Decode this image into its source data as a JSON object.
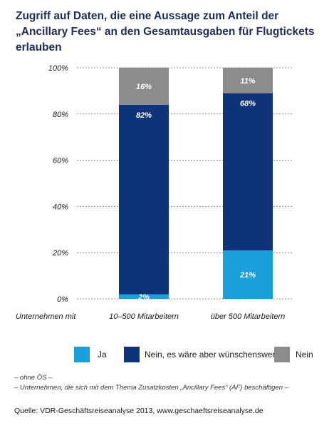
{
  "title": "Zugriff auf Daten, die eine Aussage zum Anteil der „Ancillary Fees“ an den Gesamtausgaben für Flugtickets erlauben",
  "chart_data": {
    "type": "bar",
    "stacked": true,
    "title": "Zugriff auf Daten, die eine Aussage zum Anteil der „Ancillary Fees“ an den Gesamtausgaben für Flugtickets erlauben",
    "xlabel": "Unternehmen mit",
    "ylabel": "",
    "ylim": [
      0,
      100
    ],
    "yticks": [
      "0%",
      "20%",
      "40%",
      "60%",
      "80%",
      "100%"
    ],
    "grid": true,
    "legend_position": "bottom",
    "categories": [
      "10–500 Mitarbeitern",
      "über 500 Mitarbeitern"
    ],
    "series": [
      {
        "name": "Ja",
        "values": [
          2,
          21
        ],
        "labels": [
          "2%",
          "21%"
        ],
        "color": "#1a9fdb"
      },
      {
        "name": "Nein, es wäre aber wünschenswert",
        "values": [
          82,
          68
        ],
        "labels": [
          "82%",
          "68%"
        ],
        "color": "#0f3378"
      },
      {
        "name": "Nein",
        "values": [
          16,
          11
        ],
        "labels": [
          "16%",
          "11%"
        ],
        "color": "#8c8c8c"
      }
    ]
  },
  "notes": [
    "– ohne ÖS –",
    "– Unternehmen, die sich mit dem Thema Zusatzkosten „Ancillary Fees“ (AF) beschäftigen –"
  ],
  "source": "Quelle: VDR-Geschäftsreiseanalyse 2013, www.geschaeftsreiseanalyse.de"
}
